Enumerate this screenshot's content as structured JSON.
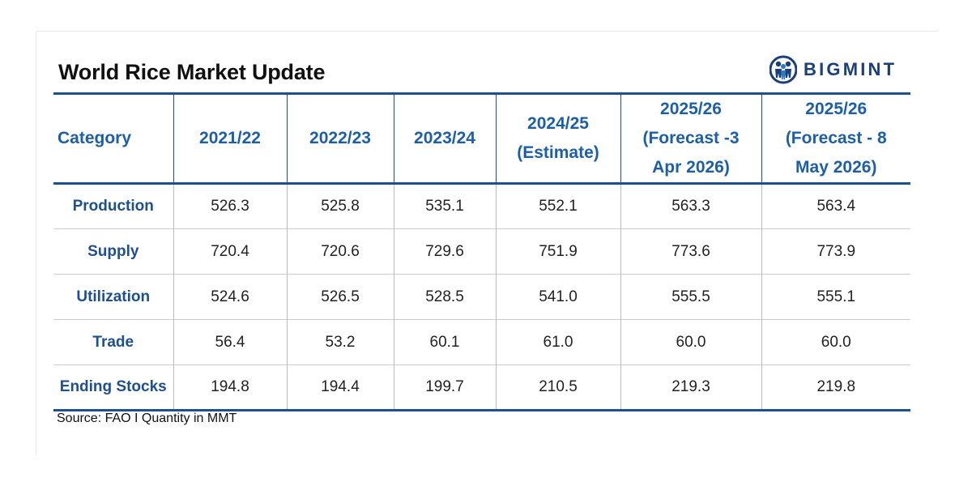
{
  "title": "World Rice Market Update",
  "logo": {
    "text": "BIGMINT",
    "icon": "bigmint-people-icon",
    "color": "#1b3f79"
  },
  "colors": {
    "header": "#1d5fa6",
    "rule": "#1d4f91"
  },
  "chart_data": {
    "type": "table",
    "title": "World Rice Market Update",
    "columns": [
      "Category",
      "2021/22",
      "2022/23",
      "2023/24",
      "2024/25 (Estimate)",
      "2025/26 (Forecast -3 Apr 2026)",
      "2025/26 (Forecast - 8 May 2026)"
    ],
    "rows": [
      {
        "category": "Production",
        "values": [
          "526.3",
          "525.8",
          "535.1",
          "552.1",
          "563.3",
          "563.4"
        ]
      },
      {
        "category": "Supply",
        "values": [
          "720.4",
          "720.6",
          "729.6",
          "751.9",
          "773.6",
          "773.9"
        ]
      },
      {
        "category": "Utilization",
        "values": [
          "524.6",
          "526.5",
          "528.5",
          "541.0",
          "555.5",
          "555.1"
        ]
      },
      {
        "category": "Trade",
        "values": [
          "56.4",
          "53.2",
          "60.1",
          "61.0",
          "60.0",
          "60.0"
        ]
      },
      {
        "category": "Ending Stocks",
        "values": [
          "194.8",
          "194.4",
          "199.7",
          "210.5",
          "219.3",
          "219.8"
        ]
      }
    ],
    "source": "Source: FAO I Quantity in MMT"
  }
}
